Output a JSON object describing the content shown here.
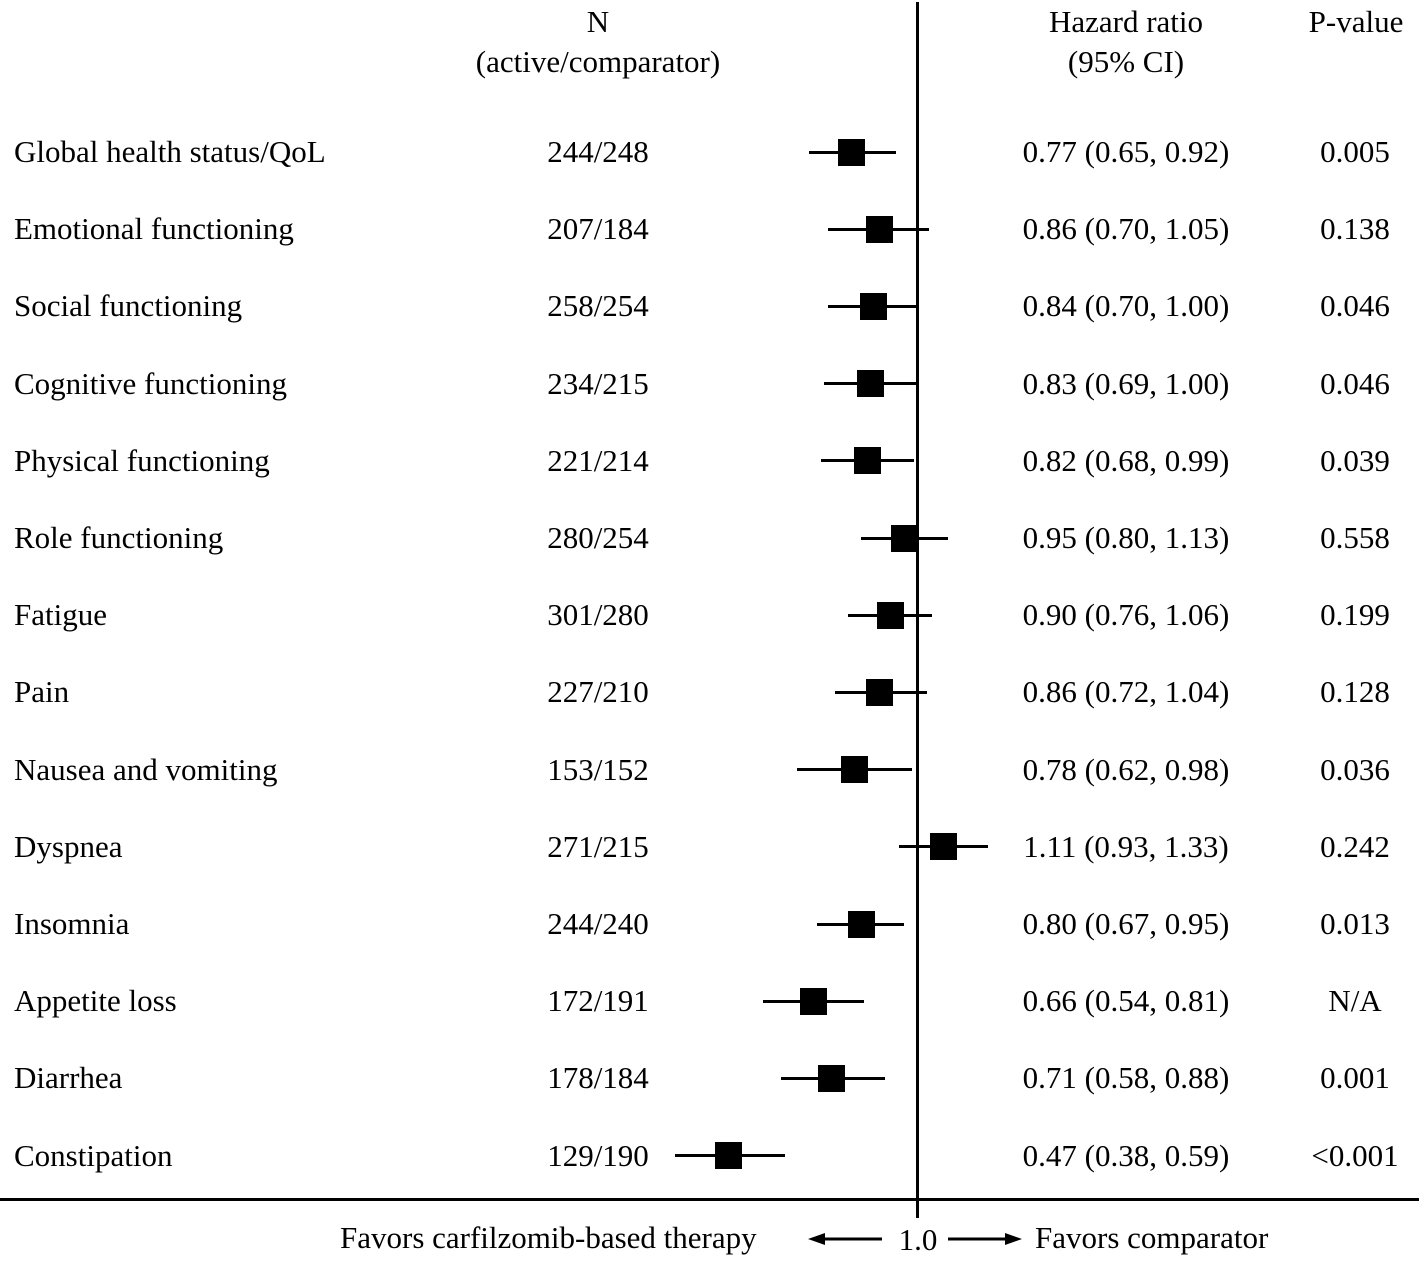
{
  "chart_data": {
    "type": "forest_plot",
    "columns": {
      "n_header": [
        "N",
        "(active/comparator)"
      ],
      "hr_header": [
        "Hazard ratio",
        "(95% CI)"
      ],
      "p_header": "P-value"
    },
    "x_axis": {
      "scale": "log",
      "reference_value": 1.0,
      "reference_label": "1.0",
      "approx_range": [
        0.35,
        1.4
      ],
      "favors_left": "Favors carfilzomib-based therapy",
      "favors_right": "Favors comparator"
    },
    "rows": [
      {
        "label": "Global health status/QoL",
        "n": "244/248",
        "hr": 0.77,
        "ci_low": 0.65,
        "ci_high": 0.92,
        "hr_label": "0.77 (0.65, 0.92)",
        "p_value": "0.005"
      },
      {
        "label": "Emotional functioning",
        "n": "207/184",
        "hr": 0.86,
        "ci_low": 0.7,
        "ci_high": 1.05,
        "hr_label": "0.86 (0.70, 1.05)",
        "p_value": "0.138"
      },
      {
        "label": "Social functioning",
        "n": "258/254",
        "hr": 0.84,
        "ci_low": 0.7,
        "ci_high": 1.0,
        "hr_label": "0.84 (0.70, 1.00)",
        "p_value": "0.046"
      },
      {
        "label": "Cognitive functioning",
        "n": "234/215",
        "hr": 0.83,
        "ci_low": 0.69,
        "ci_high": 1.0,
        "hr_label": "0.83 (0.69, 1.00)",
        "p_value": "0.046"
      },
      {
        "label": "Physical functioning",
        "n": "221/214",
        "hr": 0.82,
        "ci_low": 0.68,
        "ci_high": 0.99,
        "hr_label": "0.82 (0.68, 0.99)",
        "p_value": "0.039"
      },
      {
        "label": "Role functioning",
        "n": "280/254",
        "hr": 0.95,
        "ci_low": 0.8,
        "ci_high": 1.13,
        "hr_label": "0.95 (0.80, 1.13)",
        "p_value": "0.558"
      },
      {
        "label": "Fatigue",
        "n": "301/280",
        "hr": 0.9,
        "ci_low": 0.76,
        "ci_high": 1.06,
        "hr_label": "0.90 (0.76, 1.06)",
        "p_value": "0.199"
      },
      {
        "label": "Pain",
        "n": "227/210",
        "hr": 0.86,
        "ci_low": 0.72,
        "ci_high": 1.04,
        "hr_label": "0.86 (0.72, 1.04)",
        "p_value": "0.128"
      },
      {
        "label": "Nausea and vomiting",
        "n": "153/152",
        "hr": 0.78,
        "ci_low": 0.62,
        "ci_high": 0.98,
        "hr_label": "0.78 (0.62, 0.98)",
        "p_value": "0.036"
      },
      {
        "label": "Dyspnea",
        "n": "271/215",
        "hr": 1.11,
        "ci_low": 0.93,
        "ci_high": 1.33,
        "hr_label": "1.11 (0.93, 1.33)",
        "p_value": "0.242"
      },
      {
        "label": "Insomnia",
        "n": "244/240",
        "hr": 0.8,
        "ci_low": 0.67,
        "ci_high": 0.95,
        "hr_label": "0.80 (0.67, 0.95)",
        "p_value": "0.013"
      },
      {
        "label": "Appetite loss",
        "n": "172/191",
        "hr": 0.66,
        "ci_low": 0.54,
        "ci_high": 0.81,
        "hr_label": "0.66 (0.54, 0.81)",
        "p_value": "N/A"
      },
      {
        "label": "Diarrhea",
        "n": "178/184",
        "hr": 0.71,
        "ci_low": 0.58,
        "ci_high": 0.88,
        "hr_label": "0.71 (0.58, 0.88)",
        "p_value": "0.001"
      },
      {
        "label": "Constipation",
        "n": "129/190",
        "hr": 0.47,
        "ci_low": 0.38,
        "ci_high": 0.59,
        "hr_label": "0.47 (0.38, 0.59)",
        "p_value": "<0.001"
      }
    ]
  },
  "colors": {
    "ink": "#000000",
    "background": "#ffffff"
  }
}
